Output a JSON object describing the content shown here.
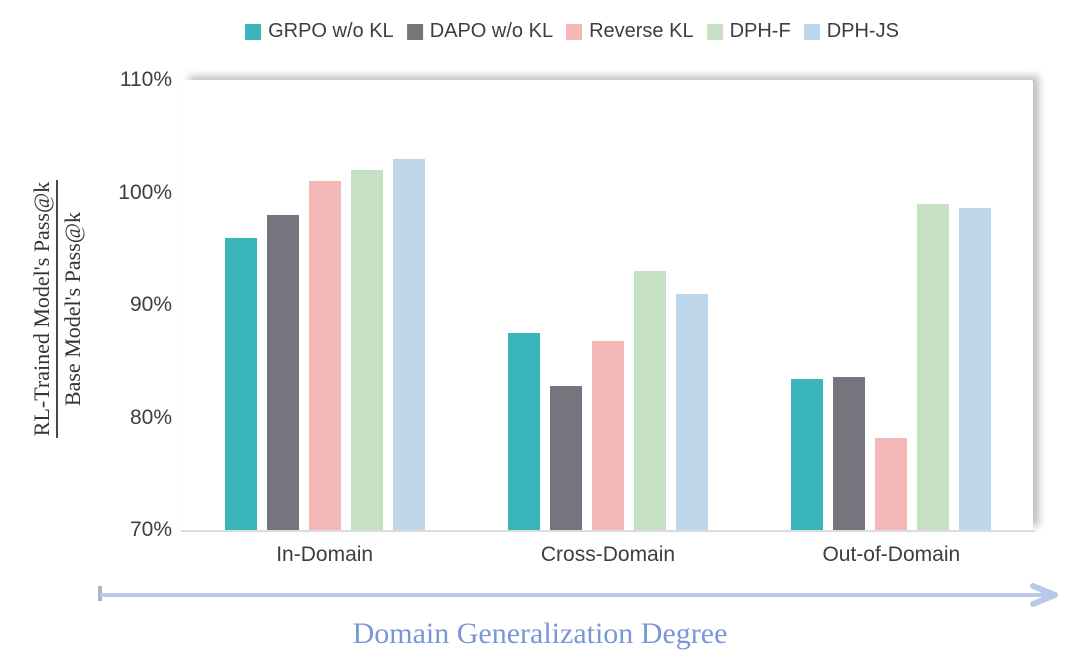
{
  "chart_data": {
    "type": "bar",
    "title": "",
    "categories": [
      "In-Domain",
      "Cross-Domain",
      "Out-of-Domain"
    ],
    "series": [
      {
        "name": "GRPO w/o KL",
        "color": "#3ab5b9",
        "values": [
          96.0,
          87.5,
          83.4
        ]
      },
      {
        "name": "DAPO w/o KL",
        "color": "#75757e",
        "values": [
          98.0,
          82.8,
          83.6
        ]
      },
      {
        "name": "Reverse KL",
        "color": "#f4b8b8",
        "values": [
          101.0,
          86.8,
          78.2
        ]
      },
      {
        "name": "DPH-F",
        "color": "#c6e0c4",
        "values": [
          102.0,
          93.0,
          99.0
        ]
      },
      {
        "name": "DPH-JS",
        "color": "#bdd6ea",
        "values": [
          103.0,
          91.0,
          98.6
        ]
      }
    ],
    "ylabel": {
      "numerator": "RL-Trained Model's Pass@k",
      "denominator": "Base Model's Pass@k"
    },
    "xlabel": "Domain Generalization Degree",
    "y_axis": {
      "min": 70,
      "max": 110,
      "ticks": [
        {
          "label": "110%",
          "value": 110
        },
        {
          "label": "100%",
          "value": 100
        },
        {
          "label": "90%",
          "value": 90
        },
        {
          "label": "80%",
          "value": 80
        },
        {
          "label": "70%",
          "value": 70
        }
      ]
    },
    "grid": false,
    "legend_position": "top"
  },
  "colors": {
    "axis_text": "#3b3e42",
    "ylabel_text": "#333437",
    "xlabel_text": "#7b96d8",
    "arrow": "#b7c9e7",
    "arrow_start_tick": "#a9b4c6",
    "baseline": "#dcdcdc"
  }
}
